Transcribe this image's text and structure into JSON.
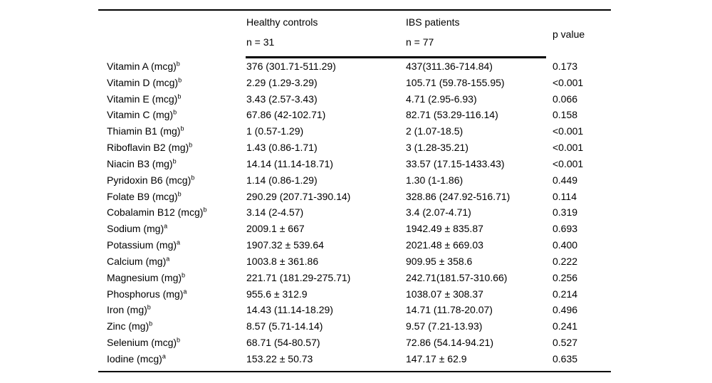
{
  "table": {
    "header": {
      "group1": {
        "title": "Healthy controls",
        "n": "n = 31"
      },
      "group2": {
        "title": "IBS patients",
        "n": "n = 77"
      },
      "pvalue": "p value"
    },
    "rows": [
      {
        "label": "Vitamin A (mcg)",
        "sup": "b",
        "healthy": "376 (301.71-511.29)",
        "ibs": "437(311.36-714.84)",
        "p": "0.173"
      },
      {
        "label": "Vitamin D (mcg)",
        "sup": "b",
        "healthy": "2.29 (1.29-3.29)",
        "ibs": "105.71 (59.78-155.95)",
        "p": "<0.001"
      },
      {
        "label": "Vitamin E (mcg)",
        "sup": "b",
        "healthy": "3.43 (2.57-3.43)",
        "ibs": "4.71 (2.95-6.93)",
        "p": "0.066"
      },
      {
        "label": "Vitamin C (mg)",
        "sup": "b",
        "healthy": "67.86 (42-102.71)",
        "ibs": "82.71 (53.29-116.14)",
        "p": "0.158"
      },
      {
        "label": "Thiamin B1 (mg)",
        "sup": "b",
        "healthy": "1 (0.57-1.29)",
        "ibs": "2 (1.07-18.5)",
        "p": "<0.001"
      },
      {
        "label": "Riboflavin B2 (mg)",
        "sup": "b",
        "healthy": "1.43 (0.86-1.71)",
        "ibs": "3 (1.28-35.21)",
        "p": "<0.001"
      },
      {
        "label": "Niacin B3 (mg)",
        "sup": "b",
        "healthy": "14.14 (11.14-18.71)",
        "ibs": "33.57 (17.15-1433.43)",
        "p": "<0.001"
      },
      {
        "label": "Pyridoxin B6 (mcg)",
        "sup": "b",
        "healthy": "1.14 (0.86-1.29)",
        "ibs": "1.30 (1-1.86)",
        "p": "0.449"
      },
      {
        "label": "Folate B9 (mcg)",
        "sup": "b",
        "healthy": "290.29 (207.71-390.14)",
        "ibs": "328.86 (247.92-516.71)",
        "p": "0.114"
      },
      {
        "label": "Cobalamin B12 (mcg)",
        "sup": "b",
        "healthy": "3.14 (2-4.57)",
        "ibs": "3.4 (2.07-4.71)",
        "p": "0.319"
      },
      {
        "label": "Sodium (mg)",
        "sup": "a",
        "healthy": "2009.1 ± 667",
        "ibs": "1942.49 ± 835.87",
        "p": "0.693"
      },
      {
        "label": "Potassium (mg)",
        "sup": "a",
        "healthy": "1907.32 ± 539.64",
        "ibs": "2021.48 ± 669.03",
        "p": "0.400"
      },
      {
        "label": "Calcium (mg)",
        "sup": "a",
        "healthy": "1003.8 ± 361.86",
        "ibs": "909.95 ± 358.6",
        "p": "0.222"
      },
      {
        "label": "Magnesium (mg)",
        "sup": "b",
        "healthy": "221.71 (181.29-275.71)",
        "ibs": "242.71(181.57-310.66)",
        "p": "0.256"
      },
      {
        "label": "Phosphorus (mg)",
        "sup": "a",
        "healthy": "955.6 ± 312.9",
        "ibs": "1038.07 ± 308.37",
        "p": "0.214"
      },
      {
        "label": "Iron (mg)",
        "sup": "b",
        "healthy": "14.43 (11.14-18.29)",
        "ibs": "14.71 (11.78-20.07)",
        "p": "0.496"
      },
      {
        "label": "Zinc (mg)",
        "sup": "b",
        "healthy": "8.57 (5.71-14.14)",
        "ibs": "9.57 (7.21-13.93)",
        "p": "0.241"
      },
      {
        "label": "Selenium (mcg)",
        "sup": "b",
        "healthy": "68.71 (54-80.57)",
        "ibs": "72.86 (54.14-94.21)",
        "p": "0.527"
      },
      {
        "label": "Iodine (mcg)",
        "sup": "a",
        "healthy": "153.22 ± 50.73",
        "ibs": "147.17 ± 62.9",
        "p": "0.635"
      }
    ]
  }
}
